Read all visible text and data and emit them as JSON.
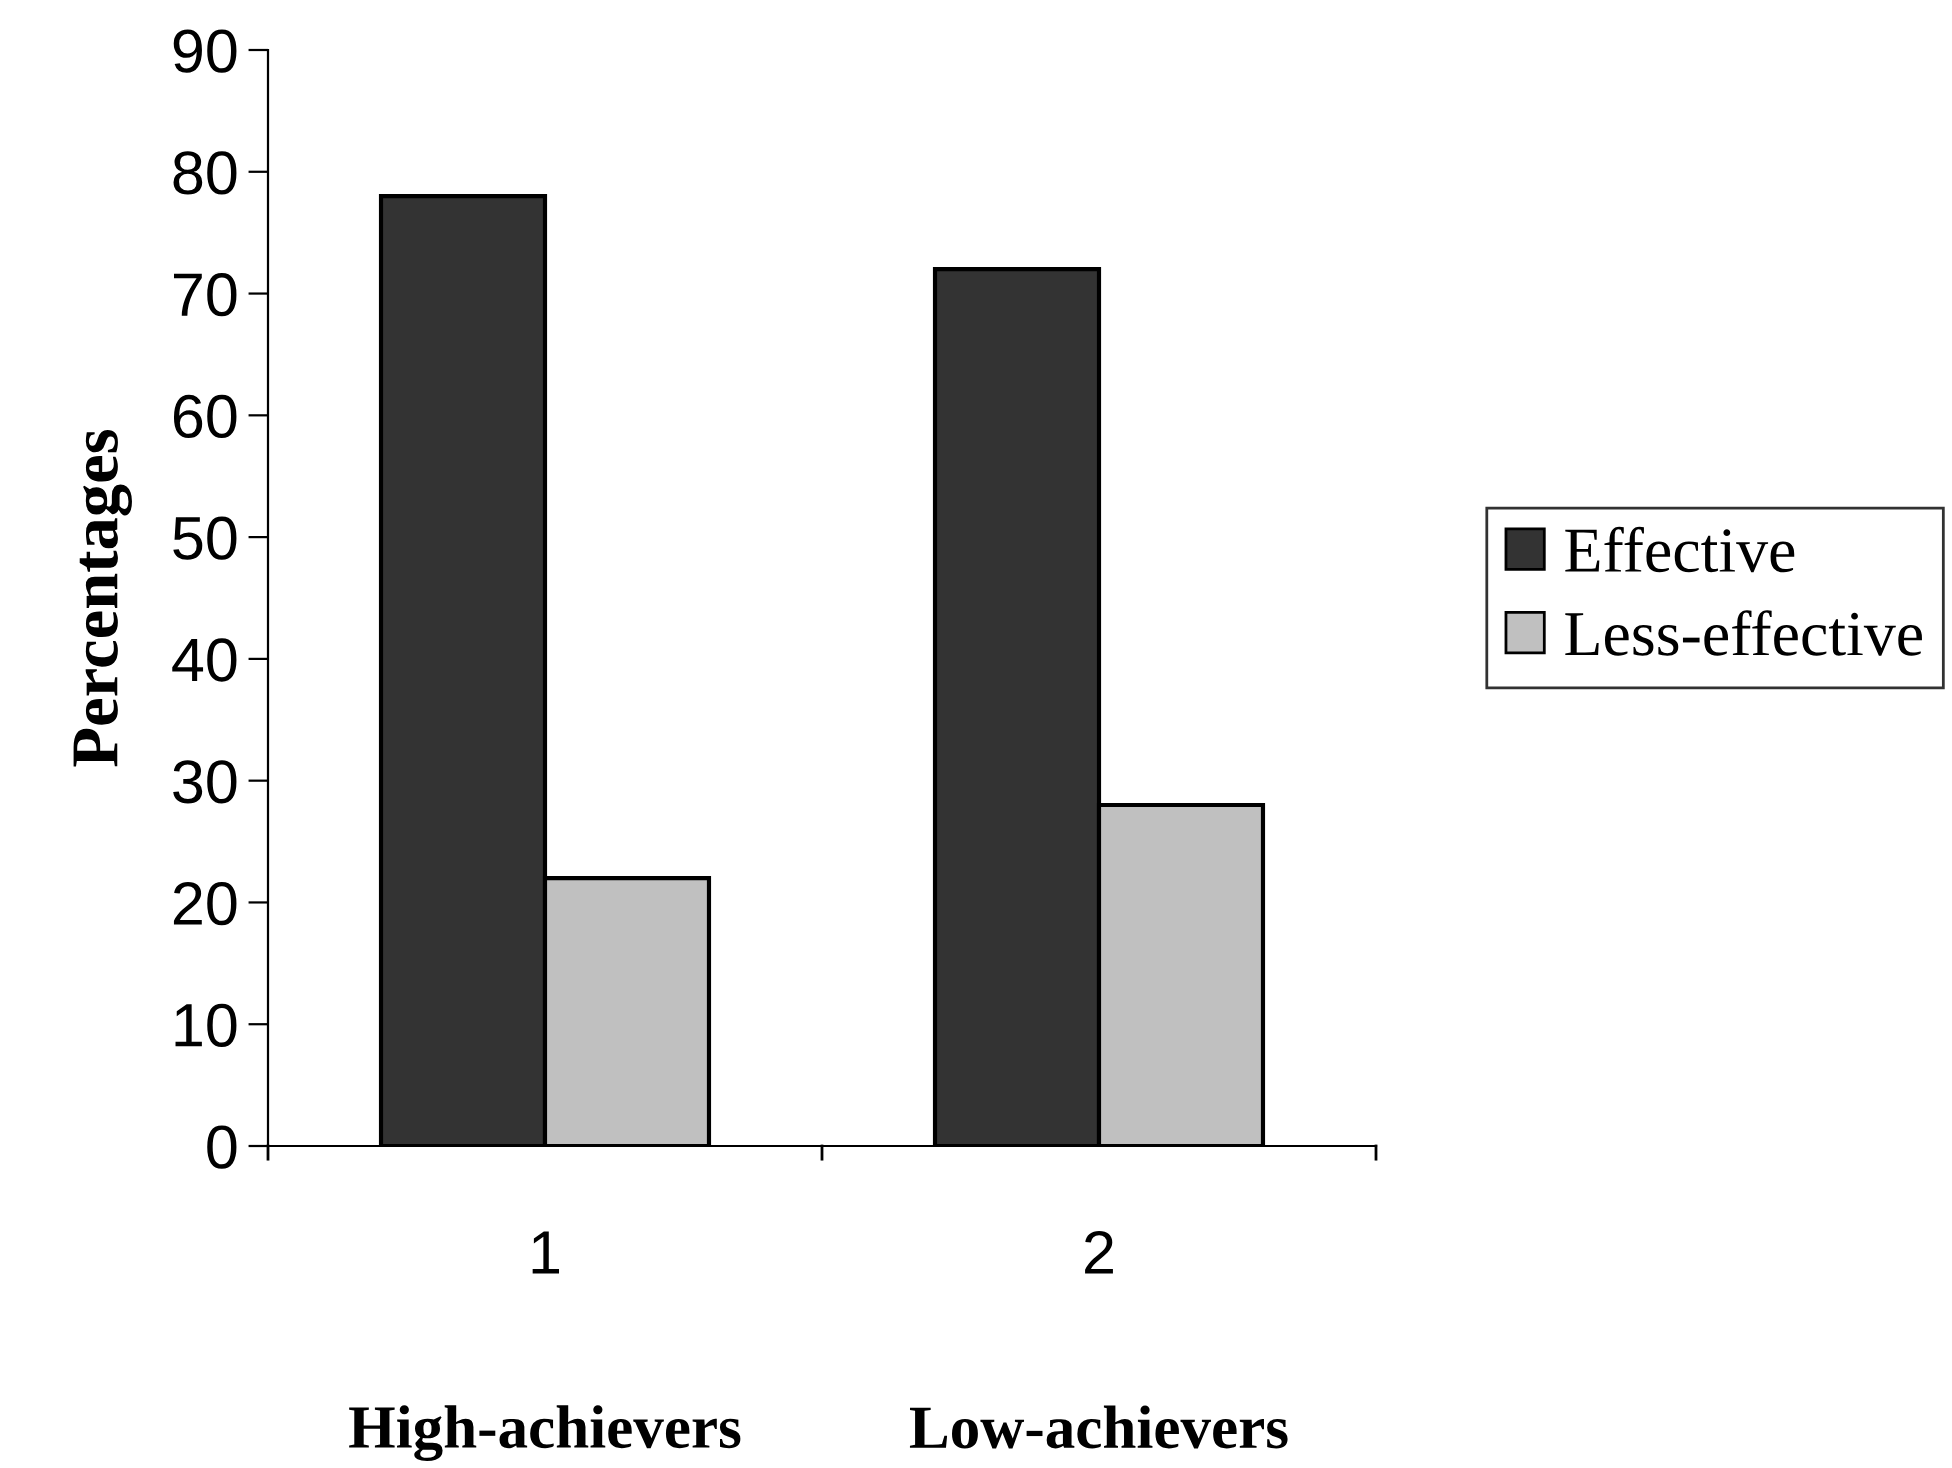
{
  "chart_data": {
    "type": "bar",
    "ylabel": "Percentages",
    "categories": [
      "1",
      "2"
    ],
    "series": [
      {
        "name": "Effective",
        "color": "#333333",
        "values": [
          78,
          72
        ]
      },
      {
        "name": "Less-effective",
        "color": "#c0c0c0",
        "values": [
          22,
          28
        ]
      }
    ],
    "ylim": [
      0,
      90
    ],
    "yticks": [
      0,
      10,
      20,
      30,
      40,
      50,
      60,
      70,
      80,
      90
    ],
    "grid": false,
    "legend": "right",
    "annotations": [
      "High-achievers",
      "Low-achievers"
    ]
  }
}
